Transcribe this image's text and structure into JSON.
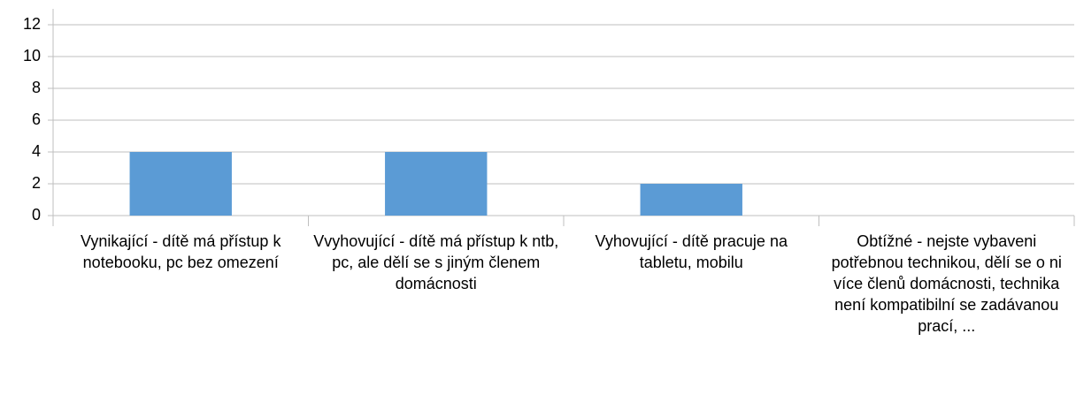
{
  "chart_data": {
    "type": "bar",
    "categories": [
      "Vynikající - dítě má přístup k notebooku, pc bez omezení",
      "Vvyhovující - dítě má přístup k ntb, pc, ale dělí se s jiným členem domácnosti",
      "Vyhovující - dítě pracuje na tabletu, mobilu",
      "Obtížné - nejste vybaveni potřebnou technikou, dělí se o ni více členů domácnosti, technika není kompatibilní se zadávanou prací, ..."
    ],
    "values": [
      4,
      4,
      2,
      0
    ],
    "color": "#5b9bd5",
    "ylim": [
      0,
      12
    ],
    "yticks": [
      0,
      2,
      4,
      6,
      8,
      10,
      12
    ],
    "grid": true
  }
}
